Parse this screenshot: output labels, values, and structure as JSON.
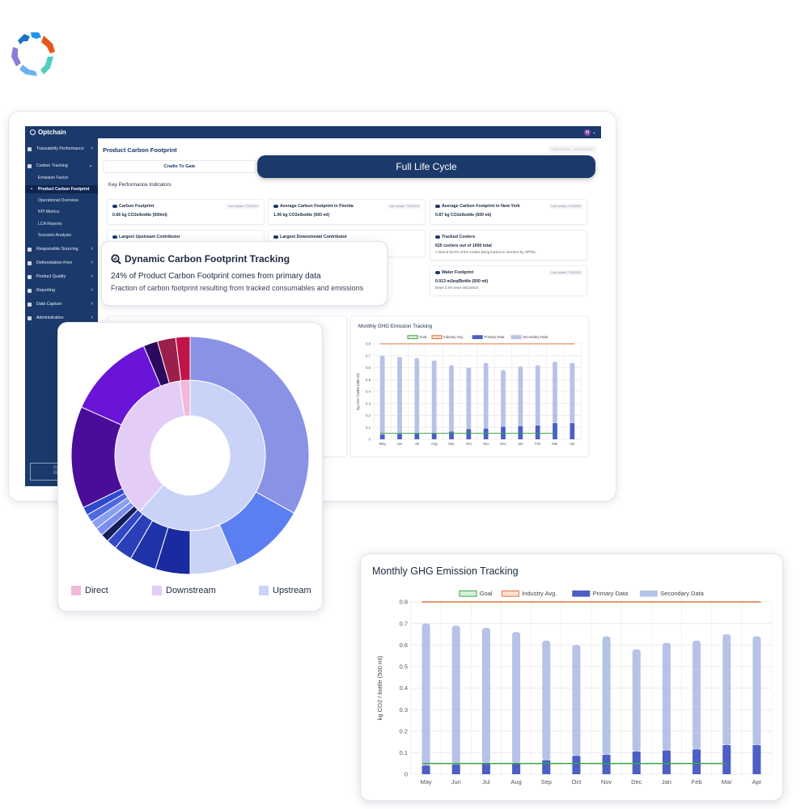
{
  "app": {
    "brand": "Optchain",
    "user_initial": "M"
  },
  "sidebar": {
    "items": [
      {
        "label": "Traceability Performance",
        "icon": "calendar-icon"
      },
      {
        "label": "Carbon Tracking",
        "icon": "printer-icon"
      },
      {
        "label": "Responsible Sourcing",
        "icon": "leaf-icon"
      },
      {
        "label": "Deforestation-Free",
        "icon": "tree-icon"
      },
      {
        "label": "Product Quality",
        "icon": "check-icon"
      },
      {
        "label": "Reporting",
        "icon": "document-icon"
      },
      {
        "label": "Data Capture",
        "icon": "database-icon"
      },
      {
        "label": "Administration",
        "icon": "tools-icon"
      }
    ],
    "subitems": [
      {
        "label": "Emission Factor"
      },
      {
        "label": "Product Carbon Footprint"
      },
      {
        "label": "Operational Overview"
      },
      {
        "label": "KPI Metrics"
      },
      {
        "label": "LCA Reports"
      },
      {
        "label": "Scenario Analysis"
      }
    ],
    "footer_logo": "ROA BEVE"
  },
  "main": {
    "page_title": "Product Carbon Footprint",
    "date_range": "06/01/2024 - 07/25/2024",
    "tabs": {
      "cradle": "Cradle To Gate",
      "full": "Full Life Cycle"
    },
    "kpi_heading": "Key Performance Indicators",
    "kpis": [
      {
        "title": "Carbon Footprint",
        "update": "Last update: 7/15/2024",
        "value": "0.66 kg CO2e/bottle (500ml)",
        "note": ""
      },
      {
        "title": "Average Carbon Footprint in Florida",
        "update": "Last update: 7/15/2024",
        "value": "1.06 kg CO2e/bottle (500 ml)",
        "note": ""
      },
      {
        "title": "Average Carbon Footprint in New York",
        "update": "Last update: 7/15/2024",
        "value": "0.87 kg CO2e/bottle (500 ml)",
        "note": ""
      },
      {
        "title": "Largest Upstream Contributor",
        "update": "",
        "value": "",
        "note": ""
      },
      {
        "title": "Largest Downstream Contributor",
        "update": "",
        "value": "",
        "note": ""
      },
      {
        "title": "Tracked Coolers",
        "update": "",
        "value": "625 coolers out of 1000 total",
        "note": "A total of 62.5% of the coolers being tracked in real-time by OPTEL"
      },
      {
        "title": "Water Footprint",
        "update": "Last update: 7/15/2024",
        "value": "0.013 m3eq/Bottle (500 ml)",
        "note": "Down 2.4% since last period"
      }
    ],
    "small_chart_title": "Monthly GHG Emission Tracking"
  },
  "dynamic_card": {
    "title": "Dynamic Carbon Footprint Tracking",
    "headline": "24% of Product Carbon Footprint comes from primary data",
    "subtitle": "Fraction of carbon footprint resulting from tracked consumables and emissions"
  },
  "sunburst": {
    "legend": [
      {
        "label": "Direct",
        "color": "#f2b8d8"
      },
      {
        "label": "Downstream",
        "color": "#e3cdf6"
      },
      {
        "label": "Upstream",
        "color": "#c9d3f8"
      }
    ]
  },
  "chart_data": {
    "type": "bar",
    "title": "Monthly GHG Emission Tracking",
    "xlabel": "",
    "ylabel": "kg CO2 / bottle (500 ml)",
    "ylim": [
      0,
      0.8
    ],
    "yticks": [
      "0",
      "0.1",
      "0.2",
      "0.3",
      "0.4",
      "0.5",
      "0.6",
      "0.7",
      "0.8"
    ],
    "categories": [
      "May",
      "Jun",
      "Jul",
      "Aug",
      "Sep",
      "Oct",
      "Nov",
      "Dec",
      "Jan",
      "Feb",
      "Mar",
      "Apr"
    ],
    "series": [
      {
        "name": "Primary Data",
        "color": "#4b5fc4",
        "values": [
          0.04,
          0.045,
          0.05,
          0.05,
          0.065,
          0.085,
          0.09,
          0.105,
          0.11,
          0.115,
          0.135,
          0.135
        ]
      },
      {
        "name": "Secondary Data",
        "color": "#b7c3e6",
        "values": [
          0.66,
          0.645,
          0.63,
          0.61,
          0.555,
          0.515,
          0.55,
          0.475,
          0.5,
          0.505,
          0.515,
          0.505
        ]
      }
    ],
    "lines": [
      {
        "name": "Goal",
        "color": "#3aa64a",
        "value": 0.05
      },
      {
        "name": "Industry Avg.",
        "color": "#e0733a",
        "value": 0.8
      }
    ],
    "grid": true,
    "legend_position": "top"
  }
}
